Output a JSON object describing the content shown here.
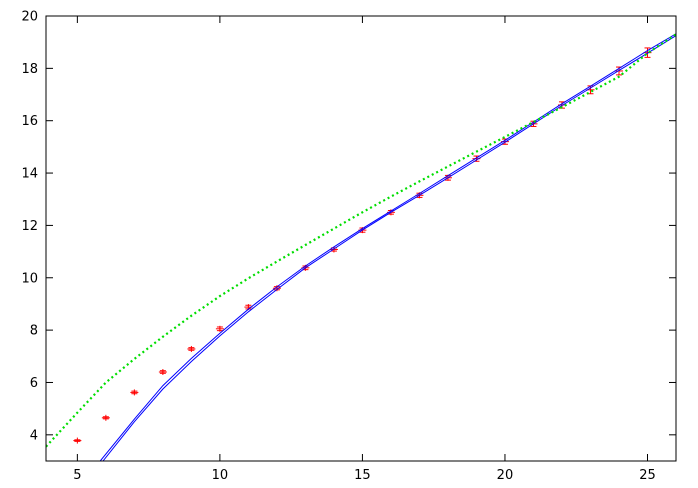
{
  "chart_data": {
    "type": "scatter",
    "title": "",
    "xlabel": "",
    "ylabel": "",
    "xlim": [
      3.9,
      26
    ],
    "ylim": [
      3,
      20
    ],
    "grid": false,
    "legend": "none",
    "x_ticks": [
      "5",
      "10",
      "15",
      "20",
      "25"
    ],
    "y_ticks": [
      "4",
      "6",
      "8",
      "10",
      "12",
      "14",
      "16",
      "18",
      "20"
    ],
    "series": [
      {
        "kind": "points_with_errorbars",
        "color": "#ff0000",
        "x": [
          5,
          6,
          7,
          8,
          9,
          10,
          11,
          12,
          13,
          14,
          15,
          16,
          17,
          18,
          19,
          20,
          21,
          22,
          23,
          24,
          25
        ],
        "y": [
          3.78,
          4.65,
          5.62,
          6.4,
          7.28,
          8.05,
          8.88,
          9.6,
          10.38,
          11.08,
          11.82,
          12.5,
          13.15,
          13.82,
          14.55,
          15.2,
          15.88,
          16.6,
          17.18,
          17.9,
          18.6
        ],
        "err": [
          0.03,
          0.04,
          0.05,
          0.05,
          0.05,
          0.07,
          0.07,
          0.06,
          0.07,
          0.06,
          0.08,
          0.07,
          0.08,
          0.09,
          0.1,
          0.1,
          0.1,
          0.12,
          0.15,
          0.15,
          0.18
        ]
      },
      {
        "kind": "line",
        "color": "#0000ff",
        "x": [
          5.9,
          7,
          8,
          9,
          10,
          11,
          12,
          13,
          14,
          15,
          16,
          17,
          18,
          19,
          20,
          21,
          22,
          23,
          24,
          25,
          26
        ],
        "y": [
          3.0,
          4.5,
          5.75,
          6.8,
          7.78,
          8.7,
          9.55,
          10.38,
          11.1,
          11.82,
          12.5,
          13.15,
          13.82,
          14.5,
          15.18,
          15.88,
          16.58,
          17.25,
          17.92,
          18.58,
          19.25
        ]
      },
      {
        "kind": "line",
        "color": "#0000ff",
        "x": [
          5.8,
          7,
          8,
          9,
          10,
          11,
          12,
          13,
          14,
          15,
          16,
          17,
          18,
          19,
          20,
          21,
          22,
          23,
          24,
          25,
          26
        ],
        "y": [
          3.0,
          4.6,
          5.88,
          6.92,
          7.88,
          8.8,
          9.65,
          10.45,
          11.18,
          11.88,
          12.55,
          13.22,
          13.9,
          14.58,
          15.25,
          15.95,
          16.65,
          17.32,
          18.0,
          18.68,
          19.32
        ]
      },
      {
        "kind": "dotted_line",
        "color": "#00dd00",
        "x": [
          3.9,
          5,
          6,
          7,
          8,
          9,
          10,
          11,
          12,
          13,
          14,
          15,
          16,
          17,
          18,
          19,
          20,
          21,
          22,
          23,
          24,
          25,
          26
        ],
        "y": [
          3.55,
          4.85,
          6.0,
          6.9,
          7.75,
          8.55,
          9.3,
          9.98,
          10.62,
          11.25,
          11.88,
          12.5,
          13.1,
          13.68,
          14.25,
          14.82,
          15.38,
          15.95,
          16.52,
          17.1,
          17.68,
          18.58,
          19.3
        ]
      }
    ]
  }
}
